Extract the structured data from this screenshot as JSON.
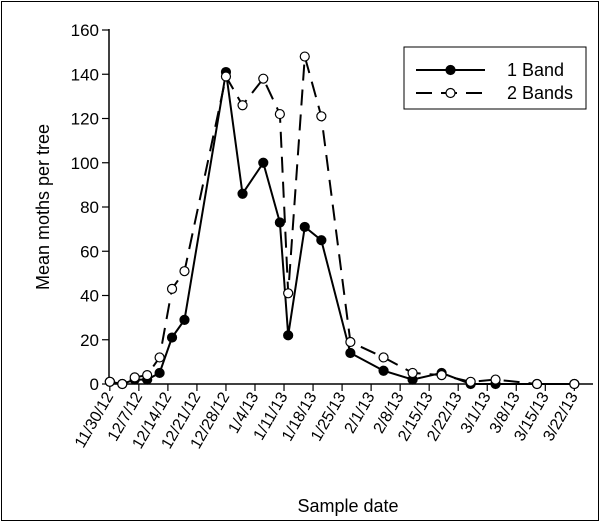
{
  "chart_data": {
    "type": "line",
    "xlabel": "Sample date",
    "ylabel": "Mean moths per tree",
    "ylim": [
      0,
      160
    ],
    "yticks": [
      0,
      20,
      40,
      60,
      80,
      100,
      120,
      140,
      160
    ],
    "xticks": [
      {
        "label": "11/30/12",
        "x": 0
      },
      {
        "label": "12/7/12",
        "x": 7
      },
      {
        "label": "12/14/12",
        "x": 14
      },
      {
        "label": "12/21/12",
        "x": 21
      },
      {
        "label": "12/28/12",
        "x": 28
      },
      {
        "label": "1/4/13",
        "x": 35
      },
      {
        "label": "1/11/13",
        "x": 42
      },
      {
        "label": "1/18/13",
        "x": 49
      },
      {
        "label": "1/25/13",
        "x": 56
      },
      {
        "label": "2/1/13",
        "x": 63
      },
      {
        "label": "2/8/13",
        "x": 70
      },
      {
        "label": "2/15/13",
        "x": 77
      },
      {
        "label": "2/22/13",
        "x": 84
      },
      {
        "label": "3/1/13",
        "x": 91
      },
      {
        "label": "3/8/13",
        "x": 98
      },
      {
        "label": "3/15/13",
        "x": 105
      },
      {
        "label": "3/22/13",
        "x": 112
      }
    ],
    "legend_position": "top-right",
    "grid": false,
    "series": [
      {
        "name": "1 Band",
        "style": "solid",
        "marker": "filled-circle",
        "x": [
          0,
          3,
          6,
          9,
          12,
          15,
          18,
          28,
          32,
          37,
          41,
          43,
          47,
          51,
          58,
          66,
          73,
          80,
          87,
          93,
          103,
          112
        ],
        "y": [
          1,
          0,
          2,
          2,
          5,
          21,
          29,
          141,
          86,
          100,
          73,
          22,
          71,
          65,
          14,
          6,
          2,
          5,
          0,
          0,
          0,
          0
        ]
      },
      {
        "name": "2 Bands",
        "style": "dashed",
        "marker": "open-circle",
        "x": [
          0,
          3,
          6,
          9,
          12,
          15,
          18,
          28,
          32,
          37,
          41,
          43,
          47,
          51,
          58,
          66,
          73,
          80,
          87,
          93,
          103,
          112
        ],
        "y": [
          1,
          0,
          3,
          4,
          12,
          43,
          51,
          139,
          126,
          138,
          122,
          41,
          148,
          121,
          19,
          12,
          5,
          4,
          1,
          2,
          0,
          0
        ]
      }
    ]
  }
}
